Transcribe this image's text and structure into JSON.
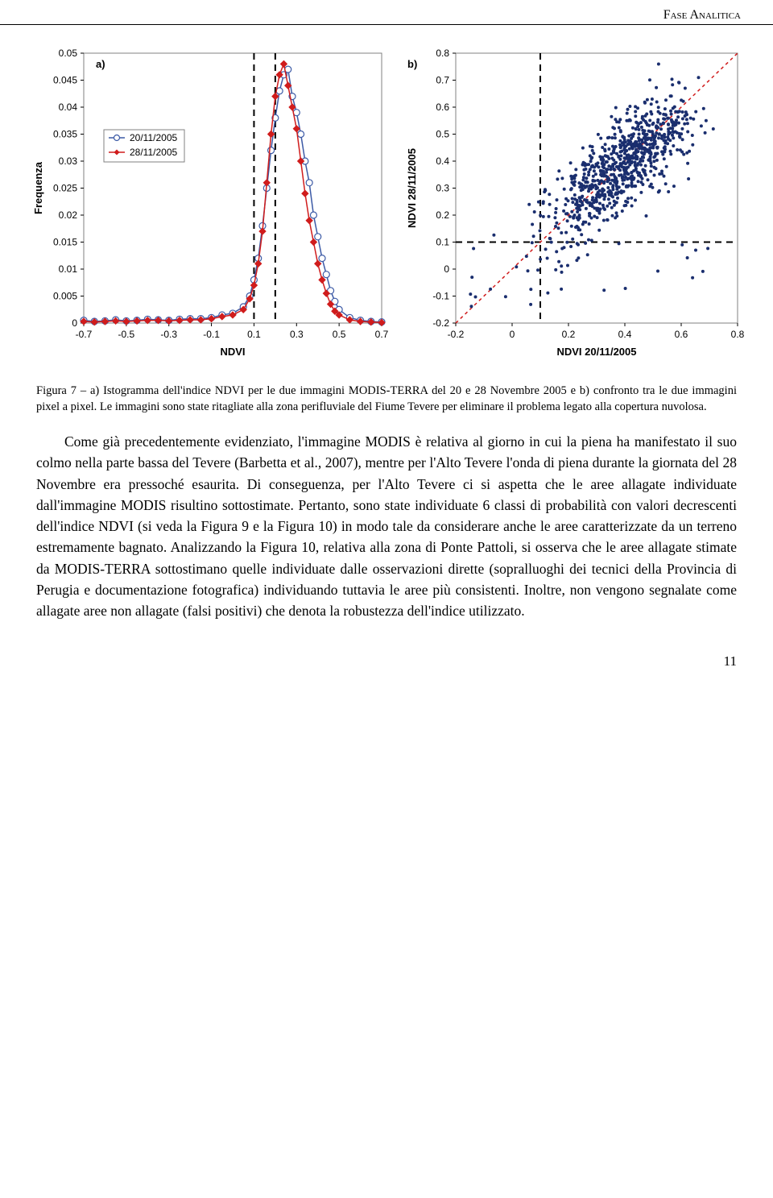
{
  "header": "Fase Analitica",
  "page_number": "11",
  "chart_a": {
    "type": "line",
    "panel_label": "a)",
    "x_label": "NDVI",
    "y_label": "Frequenza",
    "xlim": [
      -0.7,
      0.7
    ],
    "ylim": [
      0,
      0.05
    ],
    "y_ticks": [
      0,
      0.005,
      0.01,
      0.015,
      0.02,
      0.025,
      0.03,
      0.035,
      0.04,
      0.045,
      0.05
    ],
    "x_ticks": [
      -0.7,
      -0.5,
      -0.3,
      -0.1,
      0.1,
      0.3,
      0.5,
      0.7
    ],
    "vertical_dash_x": [
      0.1,
      0.2
    ],
    "vertical_dash_color": "#000000",
    "background_color": "#ffffff",
    "border_color": "#808080",
    "series": [
      {
        "name": "20/11/2005",
        "color": "#3c5aa6",
        "marker": "open-circle",
        "marker_size": 4,
        "line_width": 1.5,
        "x": [
          -0.7,
          -0.65,
          -0.6,
          -0.55,
          -0.5,
          -0.45,
          -0.4,
          -0.35,
          -0.3,
          -0.25,
          -0.2,
          -0.15,
          -0.1,
          -0.05,
          0.0,
          0.05,
          0.08,
          0.1,
          0.12,
          0.14,
          0.16,
          0.18,
          0.2,
          0.22,
          0.24,
          0.26,
          0.28,
          0.3,
          0.32,
          0.34,
          0.36,
          0.38,
          0.4,
          0.42,
          0.44,
          0.46,
          0.48,
          0.5,
          0.55,
          0.6,
          0.65,
          0.7
        ],
        "y": [
          0.0005,
          0.0003,
          0.0004,
          0.0006,
          0.0004,
          0.0005,
          0.0007,
          0.0006,
          0.0005,
          0.0007,
          0.0008,
          0.0008,
          0.001,
          0.0015,
          0.0018,
          0.003,
          0.005,
          0.008,
          0.012,
          0.018,
          0.025,
          0.032,
          0.038,
          0.043,
          0.046,
          0.047,
          0.042,
          0.039,
          0.035,
          0.03,
          0.026,
          0.02,
          0.016,
          0.012,
          0.009,
          0.006,
          0.004,
          0.0025,
          0.001,
          0.0005,
          0.0003,
          0.0002
        ]
      },
      {
        "name": "28/11/2005",
        "color": "#d01c1c",
        "marker": "filled-diamond",
        "marker_size": 4,
        "line_width": 1.5,
        "x": [
          -0.7,
          -0.65,
          -0.6,
          -0.55,
          -0.5,
          -0.45,
          -0.4,
          -0.35,
          -0.3,
          -0.25,
          -0.2,
          -0.15,
          -0.1,
          -0.05,
          0.0,
          0.05,
          0.08,
          0.1,
          0.12,
          0.14,
          0.16,
          0.18,
          0.2,
          0.22,
          0.24,
          0.26,
          0.28,
          0.3,
          0.32,
          0.34,
          0.36,
          0.38,
          0.4,
          0.42,
          0.44,
          0.46,
          0.48,
          0.5,
          0.55,
          0.6,
          0.65,
          0.7
        ],
        "y": [
          0.0003,
          0.0002,
          0.0003,
          0.0004,
          0.0003,
          0.0004,
          0.0005,
          0.0005,
          0.0004,
          0.0005,
          0.0006,
          0.0006,
          0.0008,
          0.0012,
          0.0015,
          0.0025,
          0.0045,
          0.007,
          0.011,
          0.017,
          0.026,
          0.035,
          0.042,
          0.046,
          0.048,
          0.044,
          0.04,
          0.036,
          0.03,
          0.024,
          0.019,
          0.015,
          0.011,
          0.008,
          0.0055,
          0.0035,
          0.0022,
          0.0015,
          0.0006,
          0.0003,
          0.0002,
          0.0001
        ]
      }
    ]
  },
  "chart_b": {
    "type": "scatter",
    "panel_label": "b)",
    "x_label": "NDVI 20/11/2005",
    "y_label": "NDVI 28/11/2005",
    "xlim": [
      -0.2,
      0.8
    ],
    "ylim": [
      -0.2,
      0.8
    ],
    "x_ticks": [
      -0.2,
      0,
      0.2,
      0.4,
      0.6,
      0.8
    ],
    "y_ticks": [
      -0.2,
      -0.1,
      0,
      0.1,
      0.2,
      0.3,
      0.4,
      0.5,
      0.6,
      0.7,
      0.8
    ],
    "background_color": "#ffffff",
    "border_color": "#808080",
    "point_color": "#1a2e6e",
    "point_size": 2,
    "diagonal_color": "#d01c1c",
    "diagonal_dash": "4,4",
    "vertical_dash_x": 0.1,
    "horizontal_dash_y": 0.1,
    "dash_color": "#000000",
    "n_points": 400,
    "random_seed": 11
  },
  "figure_caption": "Figura 7 – a) Istogramma dell'indice NDVI per le due immagini MODIS-TERRA del 20 e 28 Novembre 2005 e b) confronto tra le due immagini pixel a pixel. Le immagini sono state ritagliate alla zona perifluviale del Fiume Tevere per eliminare il problema legato alla copertura nuvolosa.",
  "body_text": "Come già precedentemente evidenziato, l'immagine MODIS è relativa al giorno in cui la piena ha manifestato il suo colmo nella parte bassa del Tevere (Barbetta et al., 2007), mentre per l'Alto Tevere l'onda di piena durante la giornata del 28 Novembre era pressoché esaurita. Di conseguenza, per l'Alto Tevere ci si aspetta che le aree allagate individuate dall'immagine MODIS risultino sottostimate. Pertanto, sono state individuate 6 classi di probabilità con valori decrescenti dell'indice NDVI (si veda la Figura 9 e la Figura 10) in modo tale da considerare anche le aree caratterizzate da un terreno estremamente bagnato. Analizzando la Figura 10, relativa alla zona di Ponte Pattoli, si osserva che le aree allagate stimate da MODIS-TERRA sottostimano quelle individuate dalle osservazioni dirette (sopralluoghi dei tecnici della Provincia di Perugia e documentazione fotografica) individuando tuttavia le aree più consistenti. Inoltre, non vengono segnalate come allagate aree non allagate (falsi positivi) che denota la robustezza dell'indice utilizzato."
}
